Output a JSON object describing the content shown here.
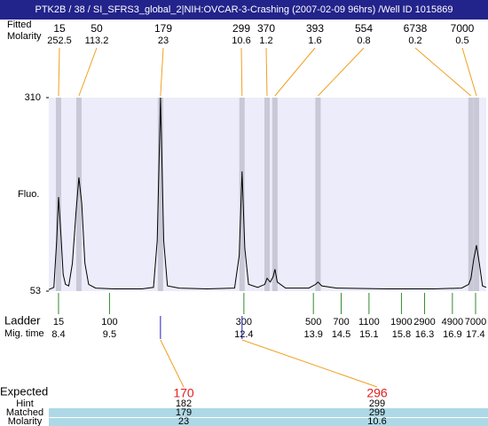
{
  "chart_data": {
    "type": "line",
    "title": "PTK2B / 38 / SI_SFRS3_global_2|NIH:OVCAR-3-Crashing (2007-02-09 96hrs) /Well ID 1015869",
    "ylabel": "Fluo.",
    "ylim": [
      53,
      310
    ],
    "yticks": [
      310,
      53
    ],
    "xlim": [
      8.19,
      17.63
    ],
    "color": "#000000",
    "x": [
      8.19,
      8.3,
      8.36,
      8.4,
      8.45,
      8.5,
      8.55,
      8.62,
      8.7,
      8.78,
      8.84,
      8.9,
      8.97,
      9.05,
      9.2,
      9.6,
      10.2,
      10.45,
      10.53,
      10.6,
      10.67,
      10.75,
      11.0,
      11.6,
      12.2,
      12.3,
      12.36,
      12.42,
      12.5,
      12.7,
      12.85,
      12.9,
      12.97,
      13.03,
      13.07,
      13.12,
      13.3,
      13.8,
      13.95,
      14.0,
      14.08,
      14.4,
      15.5,
      16.5,
      17.1,
      17.25,
      17.3,
      17.36,
      17.42,
      17.48,
      17.55,
      17.63
    ],
    "values": [
      55,
      58,
      120,
      178,
      130,
      75,
      62,
      60,
      90,
      160,
      204,
      170,
      90,
      62,
      57,
      56,
      56,
      58,
      120,
      310,
      120,
      60,
      57,
      56,
      57,
      100,
      212,
      110,
      62,
      58,
      62,
      70,
      65,
      72,
      82,
      65,
      57,
      57,
      62,
      65,
      60,
      57,
      56,
      56,
      57,
      62,
      70,
      95,
      114,
      90,
      60,
      58
    ],
    "peaks": {
      "size_label": "Fitted",
      "molarity_label": "Molarity",
      "sizes": [
        15,
        50,
        179,
        299,
        370,
        393,
        554,
        6738,
        7000
      ],
      "molarity": [
        252.5,
        113.2,
        23,
        10.6,
        1.2,
        1.6,
        0.8,
        0.2,
        0.5
      ],
      "time": [
        8.4,
        8.84,
        10.6,
        12.36,
        12.9,
        13.07,
        14.0,
        17.3,
        17.42
      ]
    },
    "ladder": {
      "label": "Ladder",
      "time_label": "Mig. time",
      "sizes": [
        15,
        100,
        300,
        500,
        700,
        1100,
        1900,
        2900,
        4900,
        7000
      ],
      "time": [
        8.4,
        9.5,
        12.4,
        13.9,
        14.5,
        15.1,
        15.8,
        16.3,
        16.9,
        17.4
      ]
    },
    "matches": {
      "expected_label": "Expected",
      "hint_label": "Hint",
      "matched_label": "Matched",
      "molarity_label": "Molarity",
      "expected": [
        170,
        296
      ],
      "hint": [
        182,
        299
      ],
      "matched": [
        179,
        299
      ],
      "molarity": [
        23,
        10.6
      ],
      "time": [
        10.6,
        12.36
      ]
    }
  }
}
